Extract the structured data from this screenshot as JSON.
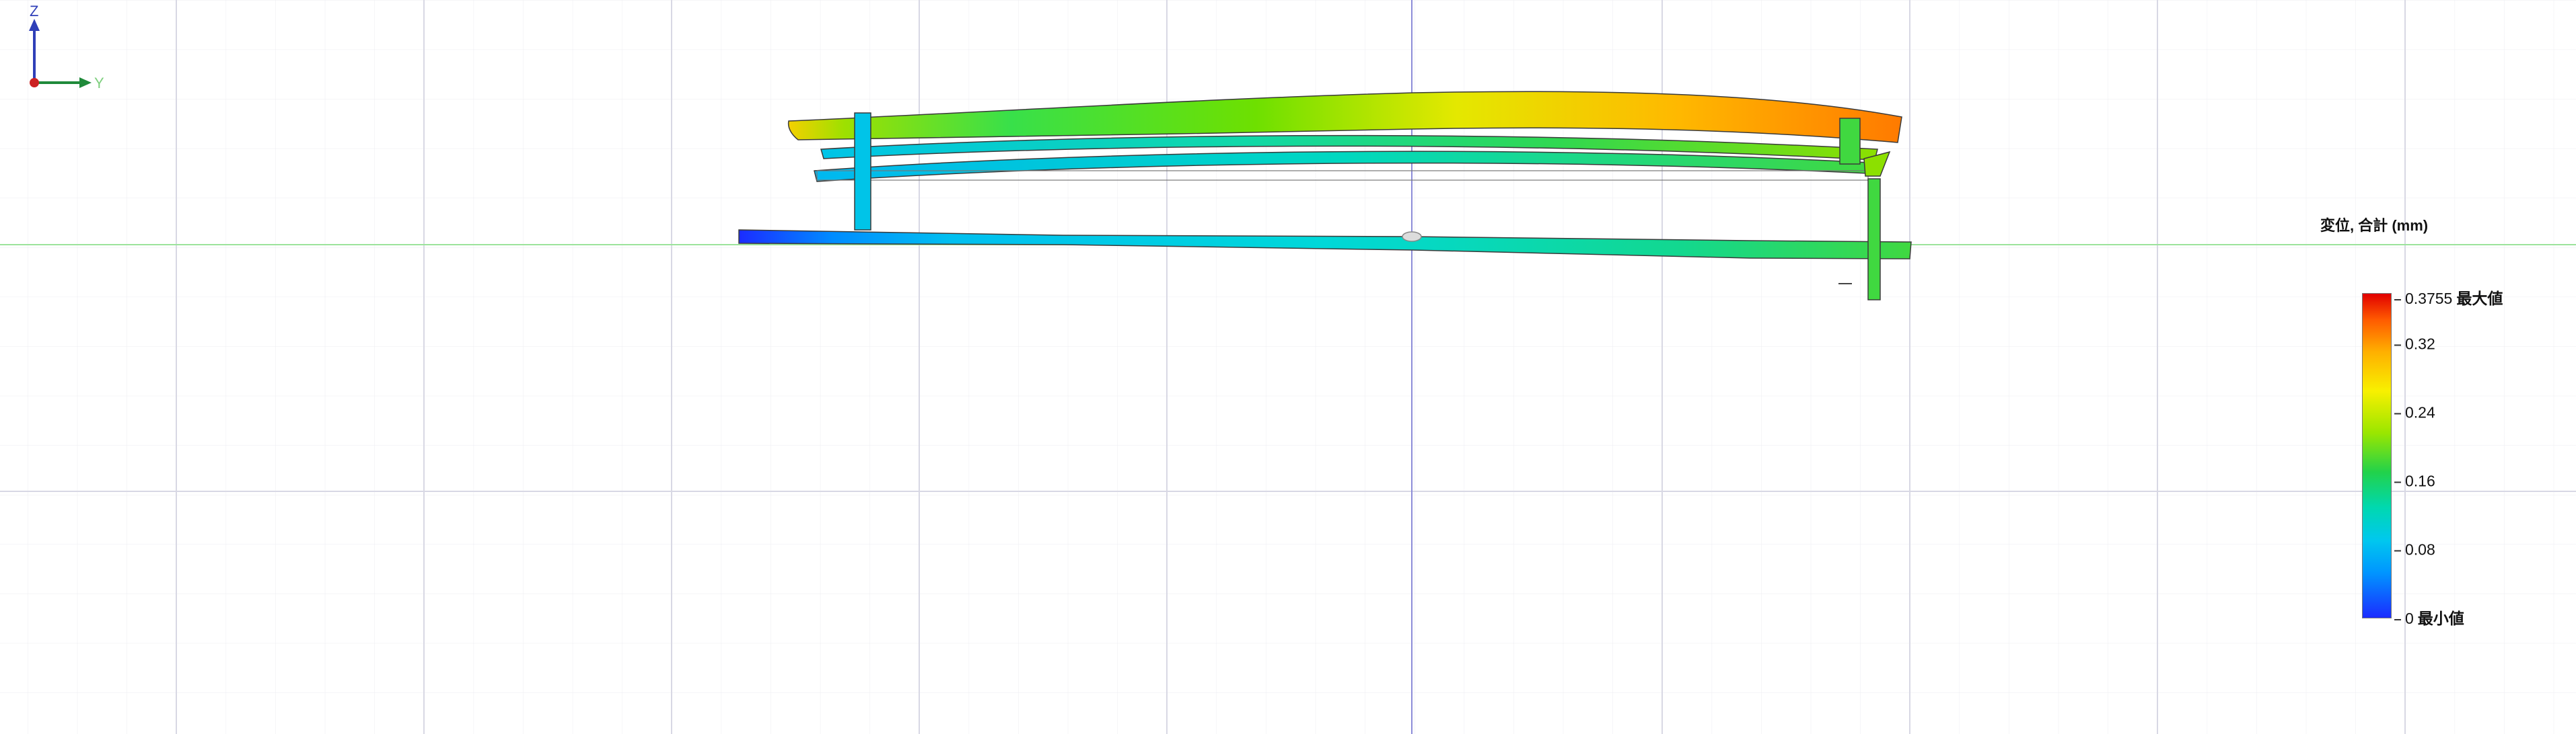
{
  "legend": {
    "title": "変位, 合計 (mm)",
    "max_value": "0.3755",
    "max_tag": "最大値",
    "ticks": [
      "0.32",
      "0.24",
      "0.16",
      "0.08"
    ],
    "min_value": "0",
    "min_tag": "最小値",
    "colors": {
      "max": "#e10000",
      "high": "#ffb000",
      "mid_high": "#f8f000",
      "mid": "#22d24a",
      "low": "#00c8ee",
      "min": "#1b2cff"
    }
  },
  "triad": {
    "z_label": "Z",
    "y_label": "Y",
    "z_color": "#2f3fb8",
    "y_color": "#1f8a3a",
    "origin_color": "#cc2222"
  },
  "view": {
    "grid_color": "#dedee8",
    "horizontal_axis_color": "#9be39b",
    "vertical_axis_color": "#8c8cd8"
  }
}
